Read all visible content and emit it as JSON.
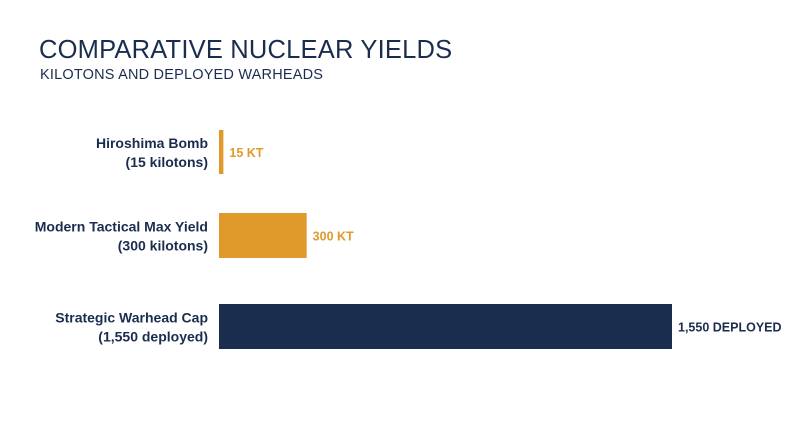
{
  "chart_data": {
    "type": "bar",
    "orientation": "horizontal",
    "title": "COMPARATIVE NUCLEAR YIELDS",
    "subtitle": "KILOTONS AND DEPLOYED WARHEADS",
    "categories": [
      [
        "Hiroshima Bomb",
        "(15 kilotons)"
      ],
      [
        "Modern Tactical Max Yield",
        "(300 kilotons)"
      ],
      [
        "Strategic Warhead Cap",
        "(1,550 deployed)"
      ]
    ],
    "values": [
      15,
      300,
      1550
    ],
    "data_labels": [
      "15 KT",
      "300 KT",
      "1,550 DEPLOYED"
    ],
    "colors": [
      "#e09a2c",
      "#e09a2c",
      "#1b2d4f"
    ],
    "label_colors": [
      "#e09a2c",
      "#e09a2c",
      "#1b2d4f"
    ],
    "xlim": [
      0,
      1550
    ],
    "grid": false,
    "legend": "none"
  }
}
